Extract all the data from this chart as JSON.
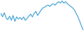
{
  "values": [
    28,
    18,
    30,
    15,
    10,
    20,
    8,
    22,
    5,
    18,
    12,
    16,
    10,
    18,
    8,
    14,
    20,
    26,
    18,
    28,
    34,
    22,
    30,
    38,
    44,
    46,
    50,
    52,
    48,
    54,
    56,
    52,
    58,
    62,
    58,
    64,
    58,
    62,
    56,
    52,
    48,
    44,
    38,
    28,
    18,
    6,
    -8,
    -20
  ],
  "line_color": "#4da6d8",
  "background_color": "#ffffff",
  "linewidth": 0.9
}
